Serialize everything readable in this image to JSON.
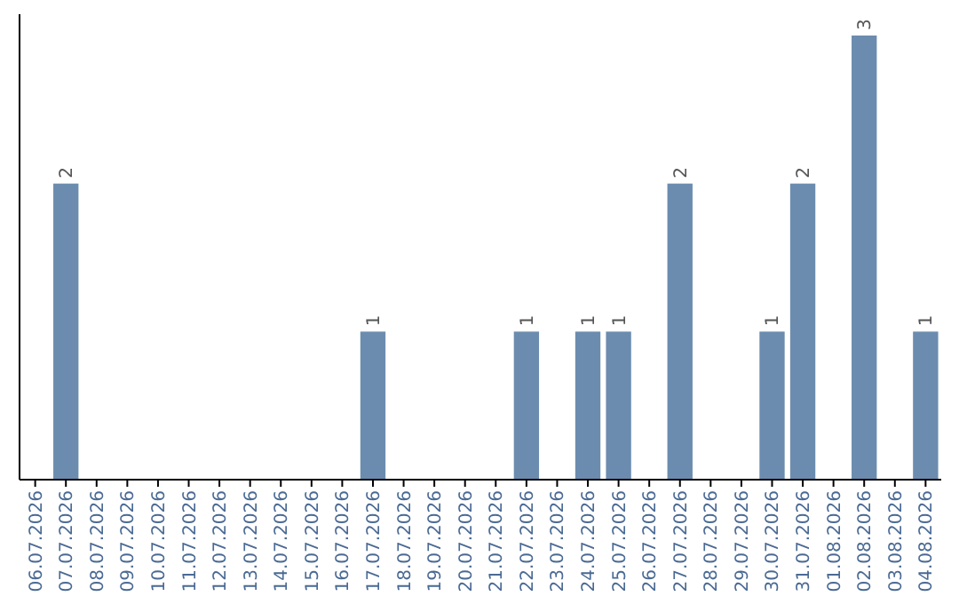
{
  "chart_data": {
    "type": "bar",
    "categories": [
      "06.07.2026",
      "07.07.2026",
      "08.07.2026",
      "09.07.2026",
      "10.07.2026",
      "11.07.2026",
      "12.07.2026",
      "13.07.2026",
      "14.07.2026",
      "15.07.2026",
      "16.07.2026",
      "17.07.2026",
      "18.07.2026",
      "19.07.2026",
      "20.07.2026",
      "21.07.2026",
      "22.07.2026",
      "23.07.2026",
      "24.07.2026",
      "25.07.2026",
      "26.07.2026",
      "27.07.2026",
      "28.07.2026",
      "29.07.2026",
      "30.07.2026",
      "31.07.2026",
      "01.08.2026",
      "02.08.2026",
      "03.08.2026",
      "04.08.2026"
    ],
    "values": [
      0,
      2,
      0,
      0,
      0,
      0,
      0,
      0,
      0,
      0,
      0,
      1,
      0,
      0,
      0,
      0,
      1,
      0,
      1,
      1,
      0,
      2,
      0,
      0,
      1,
      2,
      0,
      3,
      0,
      1
    ],
    "value_labels": [
      null,
      "2",
      null,
      null,
      null,
      null,
      null,
      null,
      null,
      null,
      null,
      "1",
      null,
      null,
      null,
      null,
      "1",
      null,
      "1",
      "1",
      null,
      "2",
      null,
      null,
      "1",
      "2",
      null,
      "3",
      null,
      "1"
    ],
    "color": "#6b8cae",
    "tick_labels": "x"
  }
}
